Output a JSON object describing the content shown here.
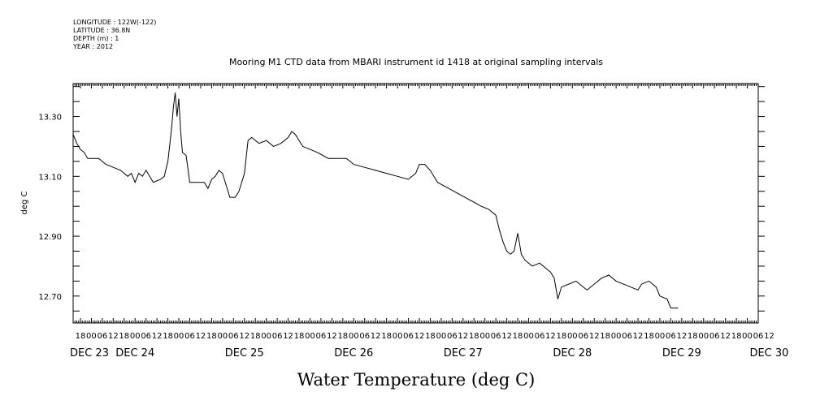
{
  "header": {
    "longitude": "LONGITUDE : 122W(-122)",
    "latitude": "LATITUDE : 36.8N",
    "depth": "DEPTH (m) : 1",
    "year": "YEAR : 2012"
  },
  "chart_data": {
    "type": "line",
    "title": "Mooring M1 CTD data from MBARI instrument id 1418 at original sampling intervals",
    "xlabel": "Water Temperature (deg C)",
    "ylabel": "deg C",
    "xlim_hours": [
      -10,
      366
    ],
    "ylim": [
      12.61,
      13.41
    ],
    "yticks": [
      12.7,
      12.9,
      13.1,
      13.3
    ],
    "ytick_labels": [
      "12.70",
      "12.90",
      "13.10",
      "13.30"
    ],
    "hour_ticks": [
      {
        "h": -6,
        "label": "18"
      },
      {
        "h": 0,
        "label": "00"
      },
      {
        "h": 6,
        "label": "06"
      },
      {
        "h": 12,
        "label": "12"
      },
      {
        "h": 18,
        "label": "18"
      },
      {
        "h": 24,
        "label": "00"
      },
      {
        "h": 30,
        "label": "06"
      },
      {
        "h": 36,
        "label": "12"
      },
      {
        "h": 42,
        "label": "18"
      },
      {
        "h": 48,
        "label": "00"
      },
      {
        "h": 54,
        "label": "06"
      },
      {
        "h": 60,
        "label": "12"
      },
      {
        "h": 66,
        "label": "18"
      },
      {
        "h": 72,
        "label": "00"
      },
      {
        "h": 78,
        "label": "06"
      },
      {
        "h": 84,
        "label": "12"
      },
      {
        "h": 90,
        "label": "18"
      },
      {
        "h": 96,
        "label": "00"
      },
      {
        "h": 102,
        "label": "06"
      },
      {
        "h": 108,
        "label": "12"
      },
      {
        "h": 114,
        "label": "18"
      },
      {
        "h": 120,
        "label": "00"
      },
      {
        "h": 126,
        "label": "06"
      },
      {
        "h": 132,
        "label": "12"
      },
      {
        "h": 138,
        "label": "18"
      },
      {
        "h": 144,
        "label": "00"
      },
      {
        "h": 150,
        "label": "06"
      },
      {
        "h": 156,
        "label": "12"
      },
      {
        "h": 162,
        "label": "18"
      },
      {
        "h": 168,
        "label": "00"
      },
      {
        "h": 174,
        "label": "06"
      },
      {
        "h": 180,
        "label": "12"
      },
      {
        "h": 186,
        "label": "18"
      },
      {
        "h": 192,
        "label": "00"
      },
      {
        "h": 198,
        "label": "06"
      },
      {
        "h": 204,
        "label": "12"
      },
      {
        "h": 210,
        "label": "18"
      },
      {
        "h": 216,
        "label": "00"
      },
      {
        "h": 222,
        "label": "06"
      },
      {
        "h": 228,
        "label": "12"
      },
      {
        "h": 234,
        "label": "18"
      },
      {
        "h": 240,
        "label": "00"
      },
      {
        "h": 246,
        "label": "06"
      },
      {
        "h": 252,
        "label": "12"
      },
      {
        "h": 258,
        "label": "18"
      },
      {
        "h": 264,
        "label": "00"
      },
      {
        "h": 270,
        "label": "06"
      },
      {
        "h": 276,
        "label": "12"
      },
      {
        "h": 282,
        "label": "18"
      },
      {
        "h": 288,
        "label": "00"
      },
      {
        "h": 294,
        "label": "06"
      },
      {
        "h": 300,
        "label": "12"
      },
      {
        "h": 306,
        "label": "18"
      },
      {
        "h": 312,
        "label": "00"
      },
      {
        "h": 318,
        "label": "06"
      },
      {
        "h": 324,
        "label": "12"
      },
      {
        "h": 330,
        "label": "18"
      },
      {
        "h": 336,
        "label": "00"
      },
      {
        "h": 342,
        "label": "06"
      },
      {
        "h": 348,
        "label": "12"
      },
      {
        "h": 354,
        "label": "18"
      },
      {
        "h": 360,
        "label": "00"
      },
      {
        "h": 366,
        "label": "06"
      },
      {
        "h": 372,
        "label": "12"
      }
    ],
    "day_labels": [
      {
        "h": -12,
        "label": "DEC 23"
      },
      {
        "h": 24,
        "label": "DEC 24"
      },
      {
        "h": 84,
        "label": "DEC 25"
      },
      {
        "h": 144,
        "label": "DEC 26"
      },
      {
        "h": 204,
        "label": "DEC 27"
      },
      {
        "h": 264,
        "label": "DEC 28"
      },
      {
        "h": 324,
        "label": "DEC 29"
      },
      {
        "h": 372,
        "label": "DEC 30"
      }
    ],
    "series": [
      {
        "values": [
          [
            -10.0,
            13.24
          ],
          [
            -8.0,
            13.21
          ],
          [
            -6.0,
            13.19
          ],
          [
            -4.0,
            13.18
          ],
          [
            -2.0,
            13.16
          ],
          [
            0.0,
            13.16
          ],
          [
            4.0,
            13.16
          ],
          [
            8.0,
            13.14
          ],
          [
            12.0,
            13.13
          ],
          [
            16.0,
            13.12
          ],
          [
            20.0,
            13.1
          ],
          [
            22.0,
            13.11
          ],
          [
            24.0,
            13.08
          ],
          [
            26.0,
            13.11
          ],
          [
            28.0,
            13.1
          ],
          [
            30.0,
            13.12
          ],
          [
            32.0,
            13.1
          ],
          [
            34.0,
            13.08
          ],
          [
            38.0,
            13.09
          ],
          [
            40.0,
            13.1
          ],
          [
            42.0,
            13.15
          ],
          [
            44.0,
            13.26
          ],
          [
            45.0,
            13.33
          ],
          [
            46.0,
            13.38
          ],
          [
            47.0,
            13.3
          ],
          [
            48.0,
            13.36
          ],
          [
            49.0,
            13.25
          ],
          [
            50.0,
            13.18
          ],
          [
            52.0,
            13.17
          ],
          [
            54.0,
            13.08
          ],
          [
            58.0,
            13.08
          ],
          [
            62.0,
            13.08
          ],
          [
            64.0,
            13.06
          ],
          [
            66.0,
            13.09
          ],
          [
            68.0,
            13.1
          ],
          [
            70.0,
            13.12
          ],
          [
            72.0,
            13.11
          ],
          [
            74.0,
            13.07
          ],
          [
            76.0,
            13.03
          ],
          [
            79.0,
            13.03
          ],
          [
            81.0,
            13.05
          ],
          [
            82.0,
            13.07
          ],
          [
            84.0,
            13.11
          ],
          [
            86.0,
            13.22
          ],
          [
            88.0,
            13.23
          ],
          [
            92.0,
            13.21
          ],
          [
            96.0,
            13.22
          ],
          [
            100.0,
            13.2
          ],
          [
            104.0,
            13.21
          ],
          [
            108.0,
            13.23
          ],
          [
            110.0,
            13.25
          ],
          [
            112.0,
            13.24
          ],
          [
            114.0,
            13.22
          ],
          [
            116.0,
            13.2
          ],
          [
            120.0,
            13.19
          ],
          [
            124.0,
            13.18
          ],
          [
            130.0,
            13.16
          ],
          [
            136.0,
            13.16
          ],
          [
            140.0,
            13.16
          ],
          [
            144.0,
            13.14
          ],
          [
            150.0,
            13.13
          ],
          [
            156.0,
            13.12
          ],
          [
            162.0,
            13.11
          ],
          [
            168.0,
            13.1
          ],
          [
            174.0,
            13.09
          ],
          [
            178.0,
            13.11
          ],
          [
            180.0,
            13.14
          ],
          [
            183.0,
            13.14
          ],
          [
            186.0,
            13.12
          ],
          [
            190.0,
            13.08
          ],
          [
            196.0,
            13.06
          ],
          [
            202.0,
            13.04
          ],
          [
            208.0,
            13.02
          ],
          [
            214.0,
            13.0
          ],
          [
            218.0,
            12.99
          ],
          [
            222.0,
            12.97
          ],
          [
            224.0,
            12.92
          ],
          [
            226.0,
            12.88
          ],
          [
            228.0,
            12.85
          ],
          [
            230.0,
            12.84
          ],
          [
            232.0,
            12.85
          ],
          [
            234.0,
            12.91
          ],
          [
            236.0,
            12.84
          ],
          [
            238.0,
            12.82
          ],
          [
            242.0,
            12.8
          ],
          [
            246.0,
            12.81
          ],
          [
            250.0,
            12.79
          ],
          [
            252.0,
            12.78
          ],
          [
            254.0,
            12.76
          ],
          [
            256.0,
            12.69
          ],
          [
            258.0,
            12.73
          ],
          [
            262.0,
            12.74
          ],
          [
            266.0,
            12.75
          ],
          [
            268.0,
            12.74
          ],
          [
            272.0,
            12.72
          ],
          [
            276.0,
            12.74
          ],
          [
            280.0,
            12.76
          ],
          [
            284.0,
            12.77
          ],
          [
            288.0,
            12.75
          ],
          [
            292.0,
            12.74
          ],
          [
            296.0,
            12.73
          ],
          [
            300.0,
            12.72
          ],
          [
            302.0,
            12.74
          ],
          [
            306.0,
            12.75
          ],
          [
            310.0,
            12.73
          ],
          [
            312.0,
            12.7
          ],
          [
            316.0,
            12.69
          ],
          [
            318.0,
            12.66
          ],
          [
            322.0,
            12.66
          ]
        ]
      }
    ]
  }
}
